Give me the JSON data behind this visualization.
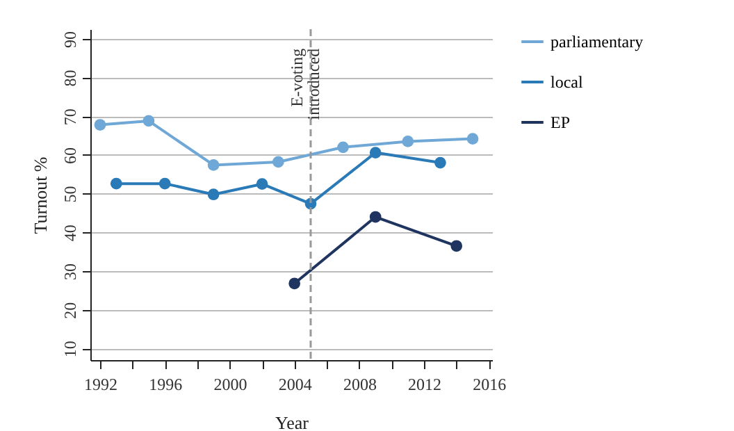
{
  "chart_data": {
    "type": "line",
    "xlabel": "Year",
    "ylabel": "Turnout %",
    "series": [
      {
        "name": "parliamentary",
        "color": "#6fa8d6",
        "x": [
          1992,
          1995,
          1999,
          2003,
          2007,
          2011,
          2015
        ],
        "values": [
          67.8,
          68.8,
          57.4,
          58.2,
          62,
          63.5,
          64.2
        ]
      },
      {
        "name": "local",
        "color": "#2a7ab8",
        "x": [
          1993,
          1996,
          1999,
          2002,
          2005,
          2009,
          2013
        ],
        "values": [
          52.6,
          52.6,
          49.8,
          52.5,
          47.4,
          60.6,
          58
        ]
      },
      {
        "name": "EP",
        "color": "#1f3560",
        "x": [
          2004,
          2009,
          2014
        ],
        "values": [
          26.8,
          44,
          36.5
        ]
      }
    ],
    "xlim": [
      1991.4,
      2016.2
    ],
    "xticks": [
      1992,
      {
        "value": 1994,
        "label": null
      },
      1996,
      {
        "value": 1998,
        "label": null
      },
      2000,
      {
        "value": 2002,
        "label": null
      },
      2004,
      {
        "value": 2006,
        "label": null
      },
      2008,
      {
        "value": 2010,
        "label": null
      },
      2012,
      {
        "value": 2014,
        "label": null
      },
      2016
    ],
    "ylim": [
      7,
      92.5
    ],
    "yticks": [
      10,
      20,
      30,
      40,
      50,
      60,
      70,
      80,
      90
    ],
    "grid": "y",
    "legend": "right",
    "marker": "circle",
    "line_style": "solid",
    "ref_lines": [
      {
        "axis": "x",
        "value": 2005,
        "label": "E-voting introduced",
        "color": "#999999",
        "line_style": "dashed"
      }
    ]
  }
}
